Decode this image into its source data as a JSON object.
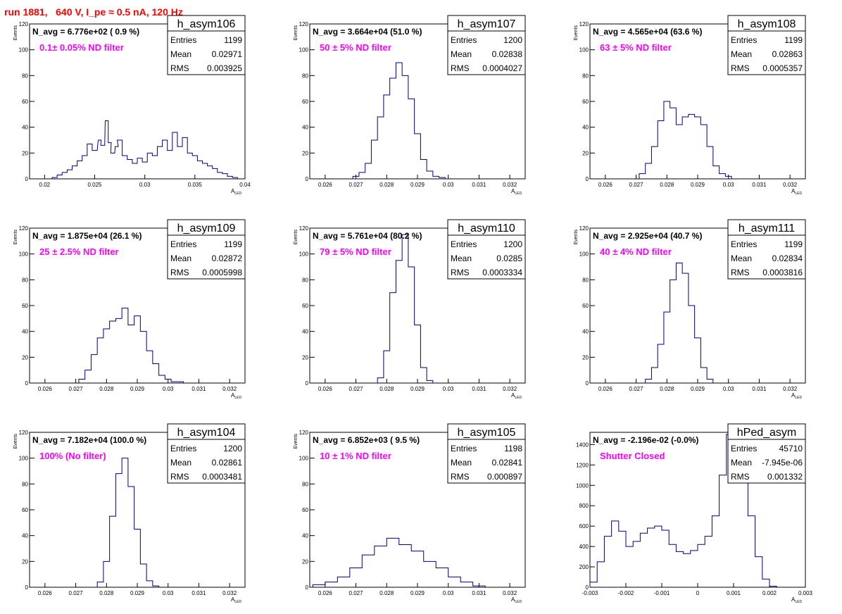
{
  "run_title": "run 1881,   640 V, I_pe ≈ 0.5 nA, 120 Hz",
  "colors": {
    "line": "#000080",
    "title": "#ff0000",
    "magenta": "#ff00ff",
    "frame": "#000000"
  },
  "chart_data": [
    {
      "type": "histogram",
      "name": "h_asym106",
      "navg": "N_avg = 6.776e+02 ( 0.9 %)",
      "filter": "0.1± 0.05% ND filter",
      "stats": [
        [
          "Entries",
          "1199"
        ],
        [
          "Mean",
          "0.02971"
        ],
        [
          "RMS",
          "0.003925"
        ]
      ],
      "xlabel": "A_LED",
      "ylabel": "Events",
      "xlim": [
        0.0185,
        0.04
      ],
      "ylim": [
        0,
        120
      ],
      "xticks": [
        0.02,
        0.025,
        0.03,
        0.035,
        0.04
      ],
      "xticklabels": [
        "0.02",
        "0.025",
        "0.03",
        "0.035",
        "0.04"
      ],
      "yticks": [
        0,
        20,
        40,
        60,
        80,
        100,
        120
      ],
      "x": [
        0.021,
        0.0215,
        0.022,
        0.0225,
        0.023,
        0.0235,
        0.024,
        0.0245,
        0.025,
        0.0255,
        0.0258,
        0.0262,
        0.0265,
        0.0268,
        0.0272,
        0.0275,
        0.028,
        0.0285,
        0.029,
        0.0295,
        0.03,
        0.0305,
        0.031,
        0.0315,
        0.032,
        0.0325,
        0.033,
        0.0335,
        0.034,
        0.0345,
        0.035,
        0.0355,
        0.036,
        0.0365,
        0.037,
        0.0375,
        0.038,
        0.0385,
        0.039
      ],
      "y": [
        1,
        3,
        5,
        7,
        10,
        14,
        18,
        27,
        22,
        30,
        26,
        45,
        28,
        20,
        25,
        30,
        18,
        15,
        12,
        16,
        13,
        20,
        18,
        25,
        30,
        22,
        36,
        25,
        32,
        20,
        18,
        14,
        12,
        10,
        8,
        5,
        4,
        2,
        1
      ]
    },
    {
      "type": "histogram",
      "name": "h_asym107",
      "navg": "N_avg = 3.664e+04 (51.0 %)",
      "filter": "50 ± 5% ND filter",
      "stats": [
        [
          "Entries",
          "1200"
        ],
        [
          "Mean",
          "0.02838"
        ],
        [
          "RMS",
          "0.0004027"
        ]
      ],
      "xlabel": "A_LED",
      "ylabel": "Events",
      "xlim": [
        0.0255,
        0.0325
      ],
      "ylim": [
        0,
        120
      ],
      "xticks": [
        0.026,
        0.027,
        0.028,
        0.029,
        0.03,
        0.031,
        0.032
      ],
      "xticklabels": [
        "0.026",
        "0.027",
        "0.028",
        "0.029",
        "0.03",
        "0.031",
        "0.032"
      ],
      "yticks": [
        0,
        20,
        40,
        60,
        80,
        100,
        120
      ],
      "x": [
        0.027,
        0.0272,
        0.0274,
        0.0276,
        0.0278,
        0.028,
        0.0282,
        0.0284,
        0.0286,
        0.0288,
        0.029,
        0.0292,
        0.0294,
        0.0296,
        0.0298
      ],
      "y": [
        2,
        5,
        12,
        30,
        48,
        65,
        78,
        90,
        80,
        62,
        35,
        15,
        6,
        2,
        1
      ]
    },
    {
      "type": "histogram",
      "name": "h_asym108",
      "navg": "N_avg = 4.565e+04 (63.6 %)",
      "filter": "63 ± 5% ND filter",
      "stats": [
        [
          "Entries",
          "1199"
        ],
        [
          "Mean",
          "0.02863"
        ],
        [
          "RMS",
          "0.0005357"
        ]
      ],
      "xlabel": "A_LED",
      "ylabel": "Events",
      "xlim": [
        0.0255,
        0.0325
      ],
      "ylim": [
        0,
        120
      ],
      "xticks": [
        0.026,
        0.027,
        0.028,
        0.029,
        0.03,
        0.031,
        0.032
      ],
      "xticklabels": [
        "0.026",
        "0.027",
        "0.028",
        "0.029",
        "0.03",
        "0.031",
        "0.032"
      ],
      "yticks": [
        0,
        20,
        40,
        60,
        80,
        100,
        120
      ],
      "x": [
        0.0272,
        0.0274,
        0.0276,
        0.0278,
        0.028,
        0.0282,
        0.0284,
        0.0286,
        0.0288,
        0.029,
        0.0292,
        0.0294,
        0.0296,
        0.0298,
        0.03
      ],
      "y": [
        4,
        12,
        25,
        45,
        60,
        55,
        42,
        48,
        50,
        48,
        42,
        25,
        10,
        4,
        2
      ]
    },
    {
      "type": "histogram",
      "name": "h_asym109",
      "navg": "N_avg = 1.875e+04 (26.1 %)",
      "filter": "25 ± 2.5% ND filter",
      "stats": [
        [
          "Entries",
          "1199"
        ],
        [
          "Mean",
          "0.02872"
        ],
        [
          "RMS",
          "0.0005998"
        ]
      ],
      "xlabel": "A_LED",
      "ylabel": "Events",
      "xlim": [
        0.0255,
        0.0325
      ],
      "ylim": [
        0,
        120
      ],
      "xticks": [
        0.026,
        0.027,
        0.028,
        0.029,
        0.03,
        0.031,
        0.032
      ],
      "xticklabels": [
        "0.026",
        "0.027",
        "0.028",
        "0.029",
        "0.03",
        "0.031",
        "0.032"
      ],
      "yticks": [
        0,
        20,
        40,
        60,
        80,
        100,
        120
      ],
      "x": [
        0.0272,
        0.0274,
        0.0276,
        0.0278,
        0.028,
        0.0282,
        0.0284,
        0.0286,
        0.0288,
        0.029,
        0.0292,
        0.0294,
        0.0296,
        0.0298,
        0.03,
        0.0302,
        0.0304
      ],
      "y": [
        3,
        10,
        22,
        35,
        42,
        48,
        50,
        58,
        45,
        52,
        40,
        25,
        15,
        6,
        3,
        1,
        1
      ]
    },
    {
      "type": "histogram",
      "name": "h_asym110",
      "navg": "N_avg = 5.761e+04 (80.2 %)",
      "filter": "79 ± 5% ND filter",
      "stats": [
        [
          "Entries",
          "1200"
        ],
        [
          "Mean",
          "0.0285"
        ],
        [
          "RMS",
          "0.0003334"
        ]
      ],
      "xlabel": "A_LED",
      "ylabel": "Events",
      "xlim": [
        0.0255,
        0.0325
      ],
      "ylim": [
        0,
        120
      ],
      "xticks": [
        0.026,
        0.027,
        0.028,
        0.029,
        0.03,
        0.031,
        0.032
      ],
      "xticklabels": [
        "0.026",
        "0.027",
        "0.028",
        "0.029",
        "0.03",
        "0.031",
        "0.032"
      ],
      "yticks": [
        0,
        20,
        40,
        60,
        80,
        100,
        120
      ],
      "x": [
        0.0278,
        0.028,
        0.0282,
        0.0284,
        0.0286,
        0.0288,
        0.029,
        0.0292,
        0.0294
      ],
      "y": [
        4,
        25,
        70,
        95,
        115,
        90,
        45,
        12,
        2
      ]
    },
    {
      "type": "histogram",
      "name": "h_asym111",
      "navg": "N_avg = 2.925e+04 (40.7 %)",
      "filter": "40 ± 4% ND filter",
      "stats": [
        [
          "Entries",
          "1199"
        ],
        [
          "Mean",
          "0.02834"
        ],
        [
          "RMS",
          "0.0003816"
        ]
      ],
      "xlabel": "A_LED",
      "ylabel": "Events",
      "xlim": [
        0.0255,
        0.0325
      ],
      "ylim": [
        0,
        120
      ],
      "xticks": [
        0.026,
        0.027,
        0.028,
        0.029,
        0.03,
        0.031,
        0.032
      ],
      "xticklabels": [
        "0.026",
        "0.027",
        "0.028",
        "0.029",
        "0.03",
        "0.031",
        "0.032"
      ],
      "yticks": [
        0,
        20,
        40,
        60,
        80,
        100,
        120
      ],
      "x": [
        0.0274,
        0.0276,
        0.0278,
        0.028,
        0.0282,
        0.0284,
        0.0286,
        0.0288,
        0.029,
        0.0292,
        0.0294
      ],
      "y": [
        3,
        12,
        30,
        55,
        80,
        93,
        85,
        60,
        35,
        12,
        3
      ]
    },
    {
      "type": "histogram",
      "name": "h_asym104",
      "navg": "N_avg = 7.182e+04 (100.0 %)",
      "filter": "100% (No filter)",
      "stats": [
        [
          "Entries",
          "1200"
        ],
        [
          "Mean",
          "0.02861"
        ],
        [
          "RMS",
          "0.0003481"
        ]
      ],
      "xlabel": "A_LED",
      "ylabel": "Events",
      "xlim": [
        0.0255,
        0.0325
      ],
      "ylim": [
        0,
        120
      ],
      "xticks": [
        0.026,
        0.027,
        0.028,
        0.029,
        0.03,
        0.031,
        0.032
      ],
      "xticklabels": [
        "0.026",
        "0.027",
        "0.028",
        "0.029",
        "0.03",
        "0.031",
        "0.032"
      ],
      "yticks": [
        0,
        20,
        40,
        60,
        80,
        100,
        120
      ],
      "x": [
        0.0278,
        0.028,
        0.0282,
        0.0284,
        0.0286,
        0.0288,
        0.029,
        0.0292,
        0.0294,
        0.0296
      ],
      "y": [
        4,
        20,
        55,
        88,
        100,
        78,
        45,
        18,
        5,
        1
      ]
    },
    {
      "type": "histogram",
      "name": "h_asym105",
      "navg": "N_avg = 6.852e+03 ( 9.5 %)",
      "filter": "10 ± 1% ND filter",
      "stats": [
        [
          "Entries",
          "1198"
        ],
        [
          "Mean",
          "0.02841"
        ],
        [
          "RMS",
          "0.000897"
        ]
      ],
      "xlabel": "A_LED",
      "ylabel": "Events",
      "xlim": [
        0.0255,
        0.0325
      ],
      "ylim": [
        0,
        120
      ],
      "xticks": [
        0.026,
        0.027,
        0.028,
        0.029,
        0.03,
        0.031,
        0.032
      ],
      "xticklabels": [
        "0.026",
        "0.027",
        "0.028",
        "0.029",
        "0.03",
        "0.031",
        "0.032"
      ],
      "yticks": [
        0,
        20,
        40,
        60,
        80,
        100,
        120
      ],
      "x": [
        0.0258,
        0.0262,
        0.0266,
        0.027,
        0.0274,
        0.0278,
        0.0282,
        0.0286,
        0.029,
        0.0294,
        0.0298,
        0.0302,
        0.0306,
        0.031
      ],
      "y": [
        2,
        4,
        8,
        15,
        25,
        32,
        38,
        33,
        28,
        20,
        15,
        8,
        4,
        1
      ]
    },
    {
      "type": "histogram",
      "name": "hPed_asym",
      "navg": "N_avg = -2.196e-02 (-0.0%)",
      "filter": "Shutter Closed",
      "stats": [
        [
          "Entries",
          "45710"
        ],
        [
          "Mean",
          "-7.945e-06"
        ],
        [
          "RMS",
          "0.001332"
        ]
      ],
      "xlabel": "A_LED",
      "ylabel": "",
      "xlim": [
        -0.003,
        0.003
      ],
      "ylim": [
        0,
        1520
      ],
      "xticks": [
        -0.003,
        -0.002,
        -0.001,
        0,
        0.001,
        0.002,
        0.003
      ],
      "xticklabels": [
        "-0.003",
        "-0.002",
        "-0.001",
        "0",
        "0.001",
        "0.002",
        "0.003"
      ],
      "yticks": [
        0,
        200,
        400,
        600,
        800,
        1000,
        1200,
        1400
      ],
      "x": [
        -0.0029,
        -0.0027,
        -0.0025,
        -0.0023,
        -0.0021,
        -0.0019,
        -0.0017,
        -0.0015,
        -0.0013,
        -0.0011,
        -0.0009,
        -0.0007,
        -0.0005,
        -0.0003,
        -0.0001,
        0.0001,
        0.0003,
        0.0005,
        0.0007,
        0.0009,
        0.0011,
        0.0013,
        0.0015,
        0.0017,
        0.0019,
        0.0021
      ],
      "y": [
        50,
        250,
        500,
        650,
        550,
        400,
        450,
        530,
        580,
        600,
        560,
        420,
        350,
        330,
        360,
        420,
        500,
        700,
        1100,
        1500,
        1300,
        1200,
        700,
        300,
        80,
        10
      ]
    }
  ]
}
